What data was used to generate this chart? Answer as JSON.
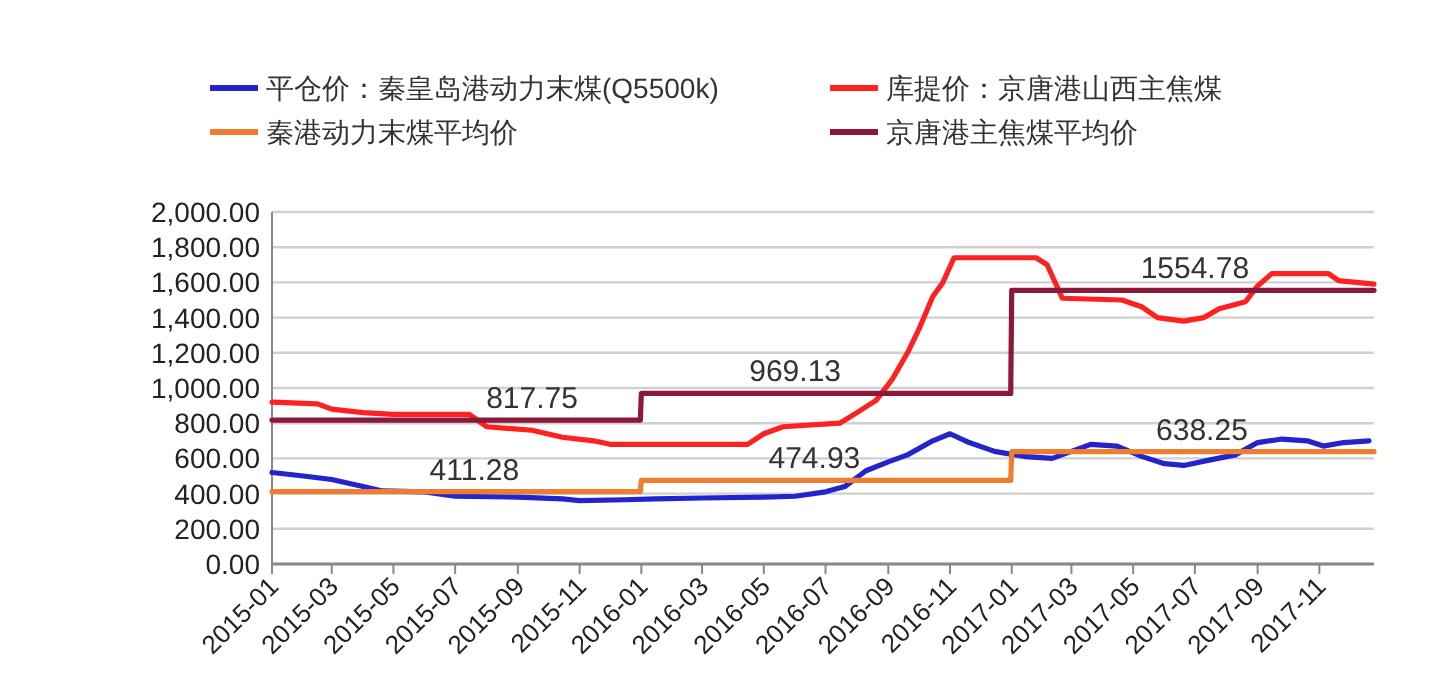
{
  "chart_data": {
    "type": "line",
    "xlim": [
      "2015-01-01",
      "2017-12-25"
    ],
    "xticks": [
      "2015-01",
      "2015-03",
      "2015-05",
      "2015-07",
      "2015-09",
      "2015-11",
      "2016-01",
      "2016-03",
      "2016-05",
      "2016-07",
      "2016-09",
      "2016-11",
      "2017-01",
      "2017-03",
      "2017-05",
      "2017-07",
      "2017-09",
      "2017-11"
    ],
    "ylim": [
      0,
      2000
    ],
    "yticks": [
      {
        "value": 0,
        "label": "0.00"
      },
      {
        "value": 200,
        "label": "200.00"
      },
      {
        "value": 400,
        "label": "400.00"
      },
      {
        "value": 600,
        "label": "600.00"
      },
      {
        "value": 800,
        "label": "800.00"
      },
      {
        "value": 1000,
        "label": "1,000.00"
      },
      {
        "value": 1200,
        "label": "1,200.00"
      },
      {
        "value": 1400,
        "label": "1,400.00"
      },
      {
        "value": 1600,
        "label": "1,600.00"
      },
      {
        "value": 1800,
        "label": "1,800.00"
      },
      {
        "value": 2000,
        "label": "2,000.00"
      }
    ],
    "grid": "y",
    "legend": "top",
    "series": [
      {
        "name": "平仓价：秦皇岛港动力末煤(Q5500k)",
        "color": "#2424cc",
        "x": [
          "2015-01-01",
          "2015-02-01",
          "2015-03-01",
          "2015-04-01",
          "2015-04-20",
          "2015-06-01",
          "2015-07-01",
          "2015-09-01",
          "2015-10-15",
          "2015-11-01",
          "2015-12-15",
          "2016-01-15",
          "2016-03-01",
          "2016-05-01",
          "2016-06-01",
          "2016-07-01",
          "2016-07-20",
          "2016-08-10",
          "2016-09-01",
          "2016-09-20",
          "2016-10-15",
          "2016-11-01",
          "2016-11-20",
          "2016-12-15",
          "2017-01-15",
          "2017-02-10",
          "2017-03-01",
          "2017-03-20",
          "2017-04-15",
          "2017-05-10",
          "2017-06-01",
          "2017-06-20",
          "2017-07-15",
          "2017-08-10",
          "2017-09-01",
          "2017-09-25",
          "2017-10-20",
          "2017-11-05",
          "2017-11-25",
          "2017-12-20"
        ],
        "values": [
          520,
          500,
          480,
          440,
          415,
          410,
          385,
          380,
          370,
          360,
          365,
          370,
          375,
          380,
          385,
          410,
          440,
          530,
          580,
          620,
          700,
          740,
          690,
          640,
          610,
          600,
          640,
          680,
          670,
          610,
          570,
          560,
          590,
          620,
          690,
          710,
          700,
          670,
          690,
          700
        ]
      },
      {
        "name": "库提价：京唐港山西主焦煤",
        "color": "#ff2020",
        "x": [
          "2015-01-01",
          "2015-02-15",
          "2015-03-01",
          "2015-04-01",
          "2015-05-01",
          "2015-07-15",
          "2015-08-01",
          "2015-09-15",
          "2015-10-15",
          "2015-11-15",
          "2015-12-01",
          "2016-04-15",
          "2016-05-01",
          "2016-05-20",
          "2016-07-15",
          "2016-08-01",
          "2016-08-20",
          "2016-09-05",
          "2016-09-20",
          "2016-10-01",
          "2016-10-15",
          "2016-10-25",
          "2016-11-05",
          "2017-01-25",
          "2017-02-05",
          "2017-02-20",
          "2017-04-20",
          "2017-05-10",
          "2017-05-25",
          "2017-06-20",
          "2017-07-10",
          "2017-07-25",
          "2017-08-20",
          "2017-09-01",
          "2017-09-15",
          "2017-11-10",
          "2017-11-20",
          "2017-12-25"
        ],
        "values": [
          920,
          910,
          880,
          860,
          850,
          850,
          780,
          760,
          720,
          700,
          680,
          680,
          740,
          780,
          800,
          860,
          930,
          1050,
          1200,
          1330,
          1520,
          1600,
          1740,
          1740,
          1700,
          1510,
          1500,
          1460,
          1400,
          1380,
          1400,
          1450,
          1490,
          1580,
          1650,
          1650,
          1610,
          1590
        ]
      },
      {
        "name": "秦港动力末煤平均价",
        "color": "#ed7d31",
        "x": [
          "2015-01-01",
          "2015-12-31",
          "2016-01-01",
          "2016-12-31",
          "2017-01-01",
          "2017-12-25"
        ],
        "values": [
          411.28,
          411.28,
          474.93,
          474.93,
          638.25,
          638.25
        ]
      },
      {
        "name": "京唐港主焦煤平均价",
        "color": "#8b1a3a",
        "x": [
          "2015-01-01",
          "2015-12-31",
          "2016-01-01",
          "2016-12-31",
          "2017-01-01",
          "2017-12-25"
        ],
        "values": [
          817.75,
          817.75,
          969.13,
          969.13,
          1554.78,
          1554.78
        ]
      }
    ],
    "annotations": [
      {
        "text": "817.75",
        "x": "2015-09-15",
        "y": 817.75
      },
      {
        "text": "411.28",
        "x": "2015-07-20",
        "y": 411.28
      },
      {
        "text": "969.13",
        "x": "2016-06-01",
        "y": 969.13
      },
      {
        "text": "474.93",
        "x": "2016-06-20",
        "y": 474.93
      },
      {
        "text": "1554.78",
        "x": "2017-07-01",
        "y": 1554.78
      },
      {
        "text": "638.25",
        "x": "2017-07-08",
        "y": 638.25
      }
    ]
  }
}
